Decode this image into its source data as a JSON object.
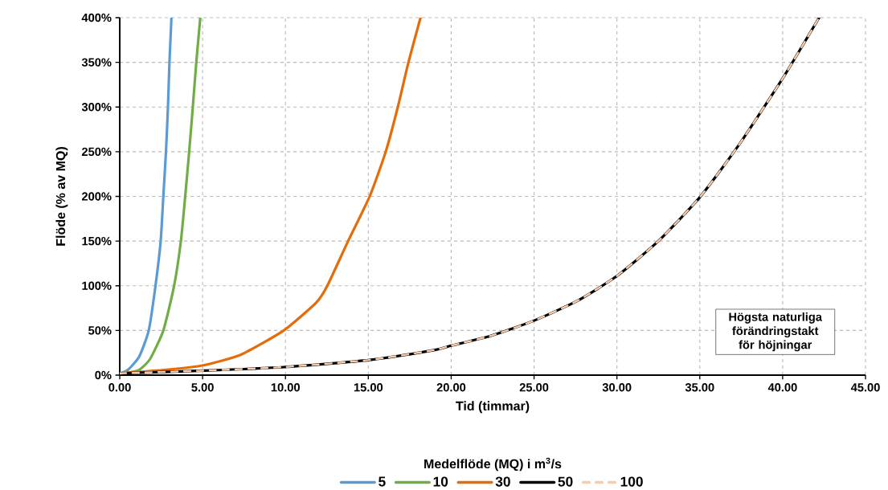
{
  "chart_data": {
    "type": "line",
    "xlabel": "Tid (timmar)",
    "ylabel": "Flöde (% av MQ)",
    "legend_title": "Medelflöde (MQ) i m$^{3}$/s",
    "annotations": [
      "Högsta naturliga förändringstakt för höjningar"
    ],
    "xlim": [
      0,
      45
    ],
    "ylim": [
      0,
      400
    ],
    "xticks": [
      {
        "value": 0,
        "label": "0.00"
      },
      {
        "value": 5,
        "label": "5.00"
      },
      {
        "value": 10,
        "label": "10.00"
      },
      {
        "value": 15,
        "label": "15.00"
      },
      {
        "value": 20,
        "label": "20.00"
      },
      {
        "value": 25,
        "label": "25.00"
      },
      {
        "value": 30,
        "label": "30.00"
      },
      {
        "value": 35,
        "label": "35.00"
      },
      {
        "value": 40,
        "label": "40.00"
      },
      {
        "value": 45,
        "label": "45.00"
      }
    ],
    "yticks": [
      {
        "value": 0,
        "label": "0%"
      },
      {
        "value": 50,
        "label": "50%"
      },
      {
        "value": 100,
        "label": "100%"
      },
      {
        "value": 150,
        "label": "150%"
      },
      {
        "value": 200,
        "label": "200%"
      },
      {
        "value": 250,
        "label": "250%"
      },
      {
        "value": 300,
        "label": "300%"
      },
      {
        "value": 350,
        "label": "350%"
      },
      {
        "value": 400,
        "label": "400%"
      }
    ],
    "grid": true,
    "legend": "bottom",
    "series": [
      {
        "name": "5",
        "color": "#5b9bd5",
        "line_style": "solid",
        "x": [
          0,
          0.5,
          1.18,
          1.75,
          2.15,
          2.47,
          2.63,
          2.79,
          2.91,
          3.0,
          3.12
        ],
        "values": [
          2,
          6,
          21,
          50,
          99,
          150,
          200,
          250,
          300,
          350,
          400
        ]
      },
      {
        "name": "10",
        "color": "#70ad47",
        "line_style": "solid",
        "x": [
          0,
          0.6,
          1.18,
          1.83,
          2.63,
          3.27,
          3.69,
          3.95,
          4.19,
          4.41,
          4.62,
          4.86
        ],
        "values": [
          2,
          3,
          6,
          18,
          50,
          99,
          150,
          200,
          250,
          300,
          350,
          400
        ]
      },
      {
        "name": "30",
        "color": "#e46c0a",
        "line_style": "solid",
        "x": [
          0,
          2.8,
          5.05,
          7.32,
          9.9,
          11.85,
          12.5,
          13.78,
          15.08,
          16.05,
          16.78,
          17.42,
          18.15
        ],
        "values": [
          2,
          6,
          11,
          23,
          50,
          81,
          99,
          150,
          200,
          250,
          300,
          350,
          400
        ]
      },
      {
        "name": "50",
        "color": "#000000",
        "line_style": "solid",
        "x": [
          0,
          5.05,
          9.9,
          15.08,
          18.96,
          20,
          22.4,
          25,
          27.6,
          30,
          32.5,
          35,
          37.3,
          40,
          42.2
        ],
        "values": [
          2,
          5,
          9,
          17,
          28,
          33,
          44,
          61,
          83,
          111,
          150,
          199,
          256,
          332,
          400
        ]
      },
      {
        "name": "100",
        "color": "#f8cbad",
        "line_style": "dashed",
        "x": [
          0,
          5.05,
          9.9,
          15.08,
          18.96,
          20,
          22.4,
          25,
          27.6,
          30,
          32.5,
          35,
          37.3,
          40,
          42.2
        ],
        "values": [
          2,
          5,
          9,
          17,
          28,
          33,
          44,
          61,
          83,
          111,
          150,
          199,
          256,
          332,
          400
        ]
      }
    ]
  }
}
